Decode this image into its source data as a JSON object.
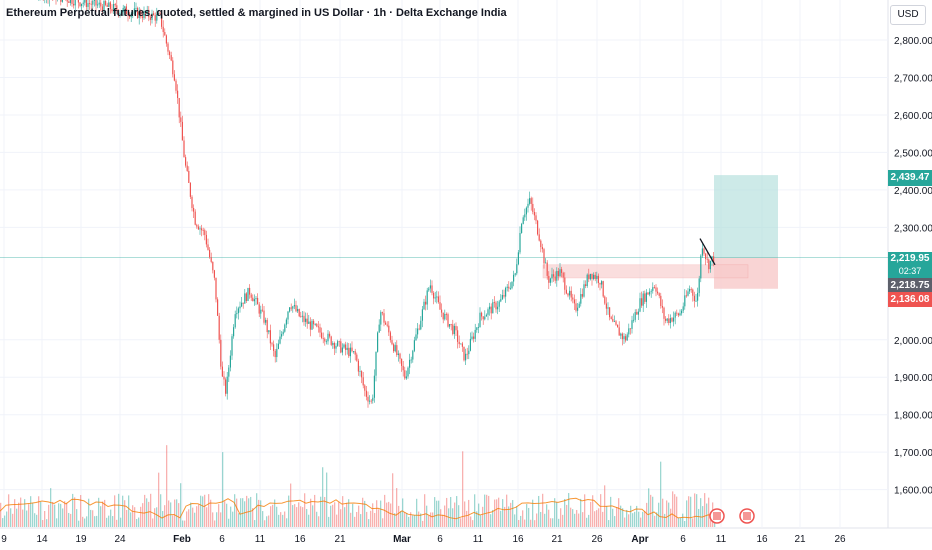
{
  "header": {
    "title": "Ethereum Perpetual futures, quoted, settled & margined in US Dollar · 1h · Delta Exchange India",
    "currency": "USD"
  },
  "colors": {
    "up": "#26a69a",
    "down": "#ef5350",
    "target_zone": "#b2dfdb",
    "stop_zone": "#f8c9c9",
    "grid": "#f0f3fa",
    "current_line": "#26a69a"
  },
  "price_tags": {
    "target": "2,439.47",
    "current": "2,219.95",
    "countdown": "02:37",
    "entry": "2,218.75",
    "stop": "2,136.08"
  },
  "chart_data": {
    "type": "candlestick",
    "title": "Ethereum Perpetual futures, quoted, settled & margined in US Dollar · 1h · Delta Exchange India",
    "ylabel": "",
    "xlabel": "",
    "y_ticks": [
      "2,800.00",
      "2,700.00",
      "2,600.00",
      "2,500.00",
      "2,400.00",
      "2,300.00",
      "2,000.00",
      "1,900.00",
      "1,800.00",
      "1,700.00",
      "1,600.00"
    ],
    "x_ticks": [
      "9",
      "14",
      "19",
      "24",
      "Feb",
      "6",
      "11",
      "16",
      "21",
      "Mar",
      "6",
      "11",
      "16",
      "21",
      "26",
      "Apr",
      "6",
      "11",
      "16",
      "21",
      "26"
    ],
    "ylim": [
      1520,
      2900
    ],
    "approx_close_path": [
      [
        0,
        2950
      ],
      [
        120,
        2880
      ],
      [
        160,
        2860
      ],
      [
        175,
        2700
      ],
      [
        185,
        2470
      ],
      [
        195,
        2320
      ],
      [
        205,
        2280
      ],
      [
        215,
        2150
      ],
      [
        222,
        1900
      ],
      [
        226,
        1860
      ],
      [
        235,
        2080
      ],
      [
        250,
        2130
      ],
      [
        265,
        2050
      ],
      [
        275,
        1950
      ],
      [
        290,
        2100
      ],
      [
        300,
        2060
      ],
      [
        320,
        2020
      ],
      [
        340,
        1980
      ],
      [
        355,
        1960
      ],
      [
        365,
        1860
      ],
      [
        372,
        1830
      ],
      [
        380,
        2080
      ],
      [
        390,
        2010
      ],
      [
        405,
        1900
      ],
      [
        420,
        2050
      ],
      [
        430,
        2150
      ],
      [
        440,
        2080
      ],
      [
        455,
        2020
      ],
      [
        465,
        1950
      ],
      [
        480,
        2060
      ],
      [
        500,
        2100
      ],
      [
        515,
        2170
      ],
      [
        522,
        2330
      ],
      [
        530,
        2370
      ],
      [
        540,
        2270
      ],
      [
        548,
        2160
      ],
      [
        560,
        2180
      ],
      [
        575,
        2080
      ],
      [
        590,
        2180
      ],
      [
        600,
        2160
      ],
      [
        610,
        2050
      ],
      [
        625,
        2000
      ],
      [
        640,
        2100
      ],
      [
        655,
        2150
      ],
      [
        665,
        2050
      ],
      [
        680,
        2070
      ],
      [
        690,
        2140
      ],
      [
        697,
        2100
      ],
      [
        702,
        2260
      ],
      [
        708,
        2200
      ],
      [
        714,
        2220
      ]
    ],
    "position": {
      "target": 2439.47,
      "entry": 2218.75,
      "stop": 2136.08,
      "current": 2219.95
    },
    "volume": "bars shown at bottom of pane"
  }
}
